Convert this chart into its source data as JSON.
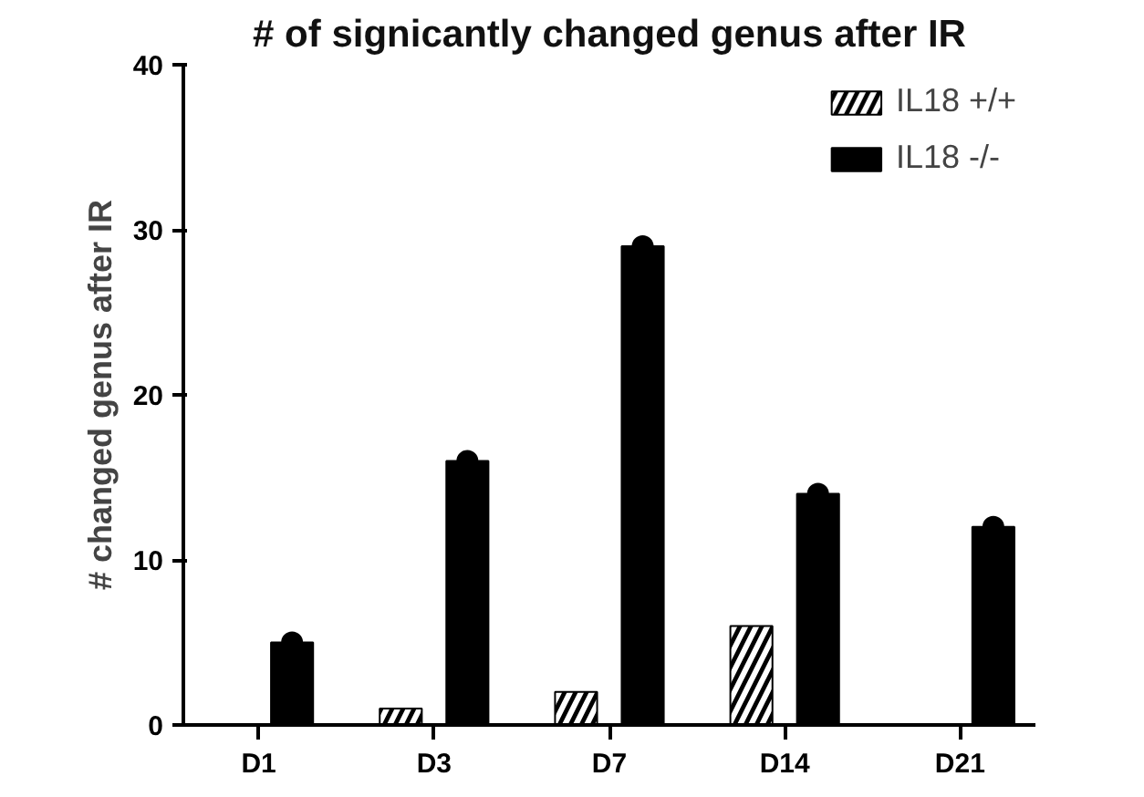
{
  "chart_data": {
    "type": "bar",
    "title": "# of signicantly changed genus after IR",
    "ylabel": "# changed genus after IR",
    "categories": [
      "D1",
      "D3",
      "D7",
      "D14",
      "D21"
    ],
    "series": [
      {
        "name": "IL18 +/+",
        "color": "#000000",
        "values": [
          0,
          1,
          2,
          6,
          0
        ]
      },
      {
        "name": "IL18 -/-",
        "color": "#000000",
        "values": [
          5,
          16,
          29,
          14,
          12
        ]
      },
      {
        "type": "scatter",
        "x": [
          "D1",
          "D3",
          "D7",
          "D14",
          "D21"
        ],
        "color": "#000000",
        "values": [
          5,
          16,
          29,
          14,
          12
        ]
      }
    ],
    "ylim": [
      0,
      40
    ],
    "yticks": [
      0,
      10,
      20,
      30,
      40
    ],
    "grid": false,
    "legend": "top right",
    "marker": "circle"
  }
}
